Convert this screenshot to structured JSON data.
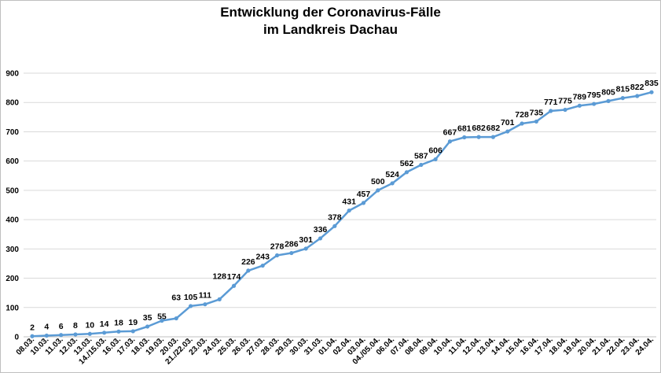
{
  "chart_data": {
    "type": "line",
    "title_line1": "Entwicklung der Coronavirus-Fälle",
    "title_line2": "im Landkreis Dachau",
    "xlabel": "",
    "ylabel": "",
    "ylim": [
      0,
      900
    ],
    "yticks": [
      0,
      100,
      200,
      300,
      400,
      500,
      600,
      700,
      800,
      900
    ],
    "grid": true,
    "legend": "none",
    "line_color": "#5b9bd5",
    "categories": [
      "08.03.",
      "10.03.",
      "11.03.",
      "12.03.",
      "13.03.",
      "14./15.03.",
      "16.03.",
      "17.03.",
      "18.03.",
      "19.03.",
      "20.03.",
      "21./22.03.",
      "23.03.",
      "24.03.",
      "25.03.",
      "26.03.",
      "27.03.",
      "28.03.",
      "29.03.",
      "30.03.",
      "31.03.",
      "01.04.",
      "02.04.",
      "03.04.",
      "04./05.04.",
      "06.04.",
      "07.04.",
      "08.04.",
      "09.04.",
      "10.04.",
      "11.04.",
      "12.04.",
      "13.04.",
      "14.04.",
      "15.04.",
      "16.04.",
      "17.04.",
      "18.04.",
      "19.04.",
      "20.04.",
      "21.04.",
      "22.04.",
      "23.04.",
      "24.04."
    ],
    "values": [
      2,
      4,
      6,
      8,
      10,
      14,
      18,
      19,
      35,
      55,
      63,
      105,
      111,
      128,
      174,
      226,
      243,
      278,
      286,
      301,
      336,
      378,
      431,
      457,
      500,
      524,
      562,
      587,
      606,
      667,
      681,
      682,
      682,
      701,
      728,
      735,
      771,
      775,
      789,
      795,
      805,
      815,
      822,
      835
    ]
  }
}
